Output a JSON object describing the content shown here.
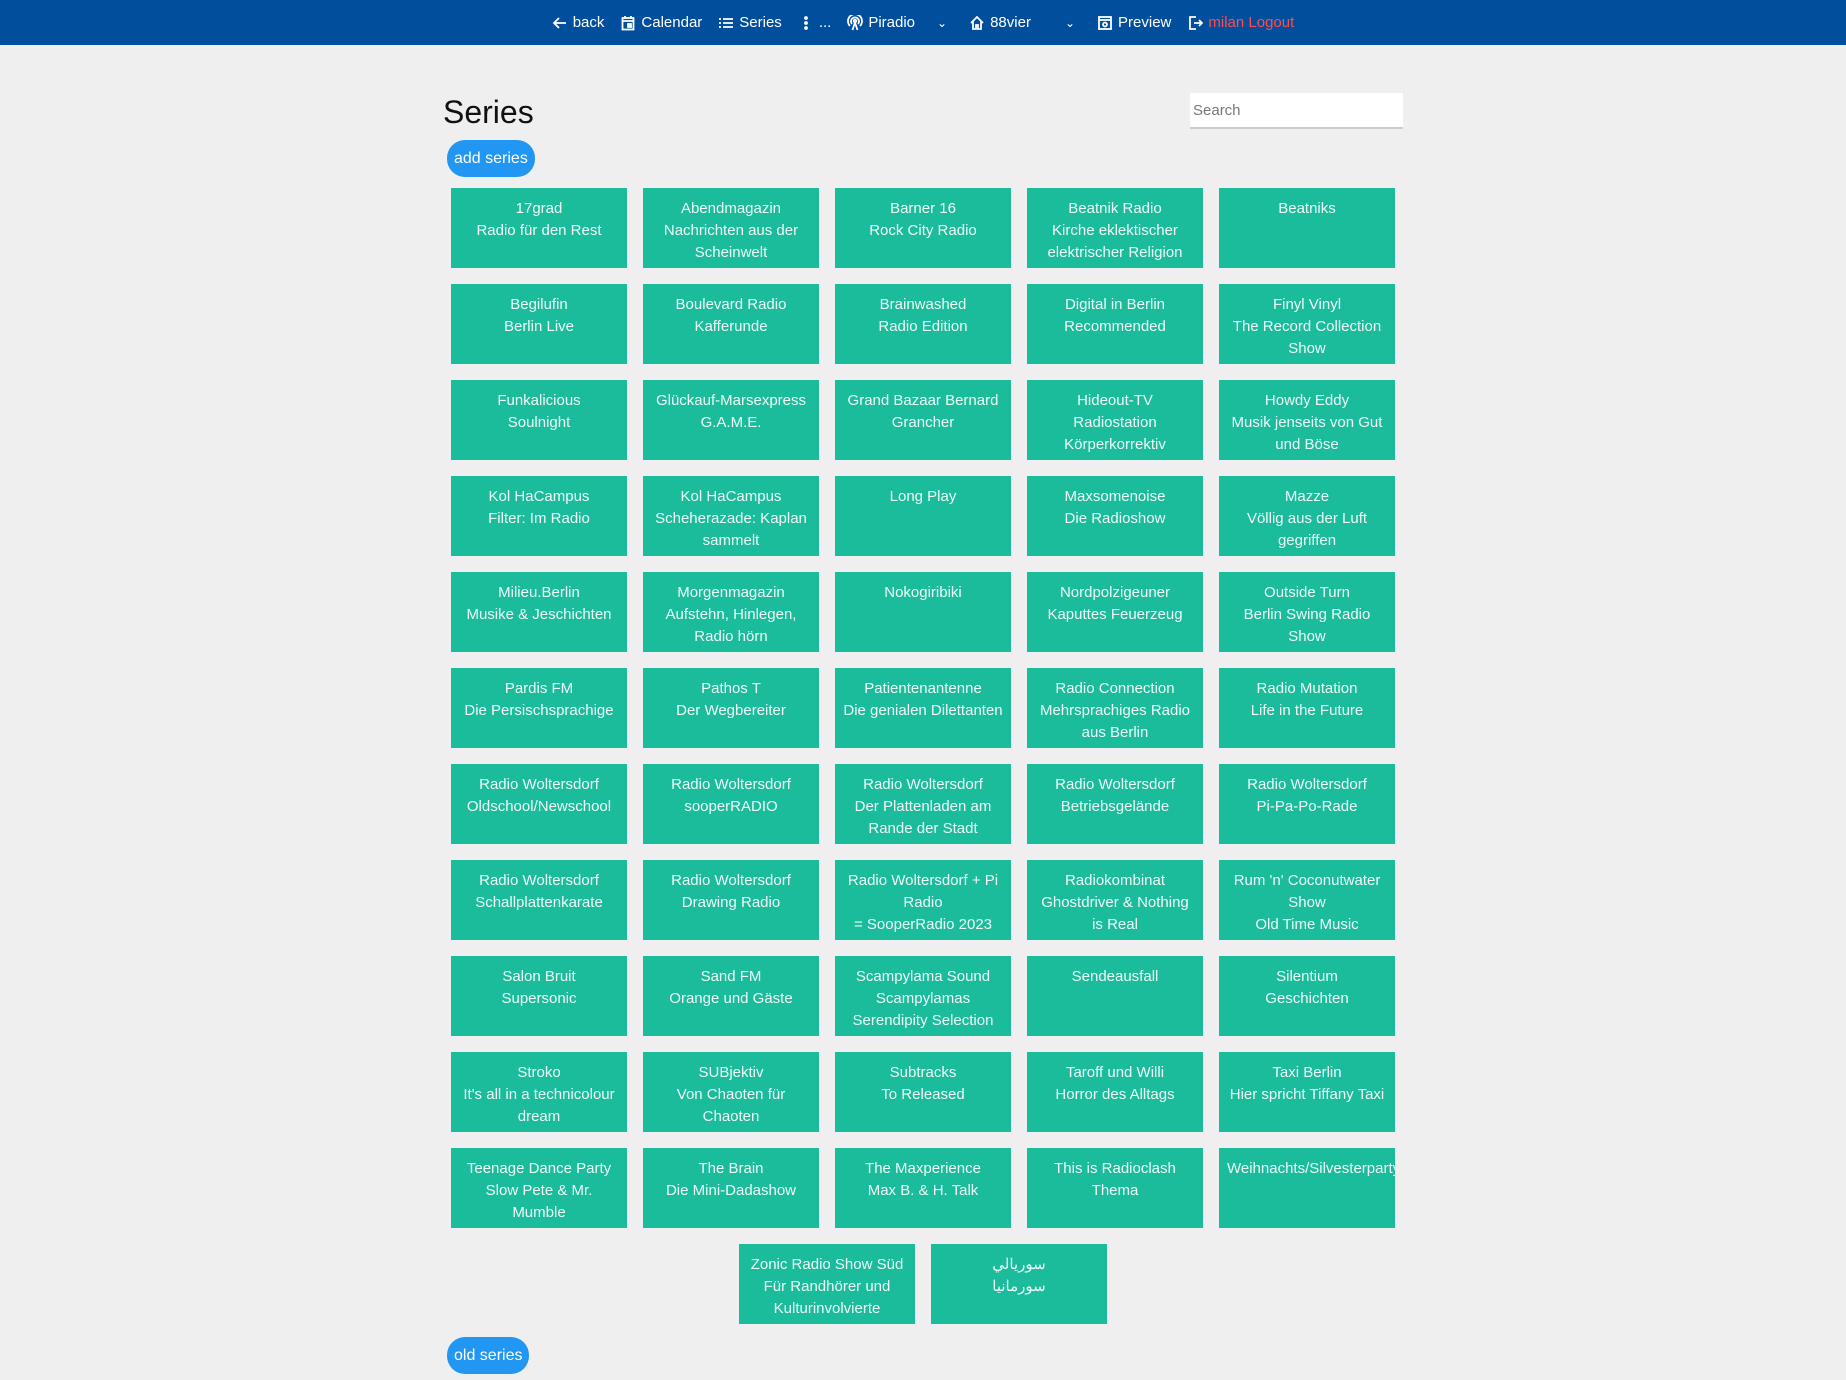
{
  "nav": {
    "back": "back",
    "calendar": "Calendar",
    "series": "Series",
    "more": "...",
    "station": "Piradio",
    "program": "88vier",
    "preview": "Preview",
    "logout": "milan Logout"
  },
  "page": {
    "title": "Series",
    "search_placeholder": "Search",
    "add_label": "add series",
    "old_label": "old series"
  },
  "colors": {
    "nav": "#014f9c",
    "tile": "#1abc9c",
    "button": "#2196f3",
    "logout": "#ff4b4b"
  },
  "series": [
    [
      "17grad",
      "Radio für den Rest"
    ],
    [
      "Abendmagazin",
      "Nachrichten aus der",
      "Scheinwelt"
    ],
    [
      "Barner 16",
      "Rock City Radio"
    ],
    [
      "Beatnik Radio",
      "Kirche eklektischer",
      "elektrischer Religion"
    ],
    [
      "Beatniks"
    ],
    [
      "Begilufin",
      "Berlin Live"
    ],
    [
      "Boulevard Radio",
      "Kafferunde"
    ],
    [
      "Brainwashed",
      "Radio Edition"
    ],
    [
      "Digital in Berlin",
      "Recommended"
    ],
    [
      "Finyl Vinyl",
      "The Record Collection",
      "Show"
    ],
    [
      "Funkalicious",
      "Soulnight"
    ],
    [
      "Glückauf-Marsexpress",
      "G.A.M.E."
    ],
    [
      "Grand Bazaar Bernard",
      "Grancher"
    ],
    [
      "Hideout-TV",
      "Radiostation",
      "Körperkorrektiv"
    ],
    [
      "Howdy Eddy",
      "Musik jenseits von Gut",
      "und Böse"
    ],
    [
      "Kol HaCampus",
      "Filter: Im Radio"
    ],
    [
      "Kol HaCampus",
      "Scheherazade: Kaplan",
      "sammelt"
    ],
    [
      "Long Play"
    ],
    [
      "Maxsomenoise",
      "Die Radioshow"
    ],
    [
      "Mazze",
      "Völlig aus der Luft",
      "gegriffen"
    ],
    [
      "Milieu.Berlin",
      "Musike & Jeschichten"
    ],
    [
      "Morgenmagazin",
      "Aufstehn, Hinlegen,",
      "Radio hörn"
    ],
    [
      "Nokogiribiki"
    ],
    [
      "Nordpolzigeuner",
      "Kaputtes Feuerzeug"
    ],
    [
      "Outside Turn",
      "Berlin Swing Radio",
      "Show"
    ],
    [
      "Pardis FM",
      "Die Persischsprachige"
    ],
    [
      "Pathos T",
      "Der Wegbereiter"
    ],
    [
      "Patientenantenne",
      "Die genialen Dilettanten"
    ],
    [
      "Radio Connection",
      "Mehrsprachiges Radio",
      "aus Berlin"
    ],
    [
      "Radio Mutation",
      "Life in the Future"
    ],
    [
      "Radio Woltersdorf",
      "Oldschool/Newschool"
    ],
    [
      "Radio Woltersdorf",
      "sooperRADIO"
    ],
    [
      "Radio Woltersdorf",
      "Der Plattenladen am",
      "Rande der Stadt"
    ],
    [
      "Radio Woltersdorf",
      "Betriebsgelände"
    ],
    [
      "Radio Woltersdorf",
      "Pi-Pa-Po-Rade"
    ],
    [
      "Radio Woltersdorf",
      "Schallplattenkarate"
    ],
    [
      "Radio Woltersdorf",
      "Drawing Radio"
    ],
    [
      "Radio Woltersdorf + Pi",
      "Radio",
      "= SooperRadio 2023"
    ],
    [
      "Radiokombinat",
      "Ghostdriver & Nothing",
      "is Real"
    ],
    [
      "Rum 'n' Coconutwater",
      "Show",
      "Old Time Music"
    ],
    [
      "Salon Bruit",
      "Supersonic"
    ],
    [
      "Sand FM",
      "Orange und Gäste"
    ],
    [
      "Scampylama Sound",
      "Scampylamas",
      "Serendipity Selection"
    ],
    [
      "Sendeausfall"
    ],
    [
      "Silentium",
      "Geschichten"
    ],
    [
      "Stroko",
      "It's all in a technicolour",
      "dream"
    ],
    [
      "SUBjektiv",
      "Von Chaoten für",
      "Chaoten"
    ],
    [
      "Subtracks",
      "To Released"
    ],
    [
      "Taroff und Willi",
      "Horror des Alltags"
    ],
    [
      "Taxi Berlin",
      "Hier spricht Tiffany Taxi"
    ],
    [
      "Teenage Dance Party",
      "Slow Pete & Mr.",
      "Mumble"
    ],
    [
      "The Brain",
      "Die Mini-Dadashow"
    ],
    [
      "The Maxperience",
      "Max B. & H. Talk"
    ],
    [
      "This is Radioclash",
      "Thema"
    ],
    [
      "Weihnachts/Silvesterparty"
    ],
    [
      "Zonic Radio Show Süd",
      "Für Randhörer und",
      "Kulturinvolvierte"
    ],
    [
      "سوريالي",
      "سورمانيا"
    ]
  ]
}
